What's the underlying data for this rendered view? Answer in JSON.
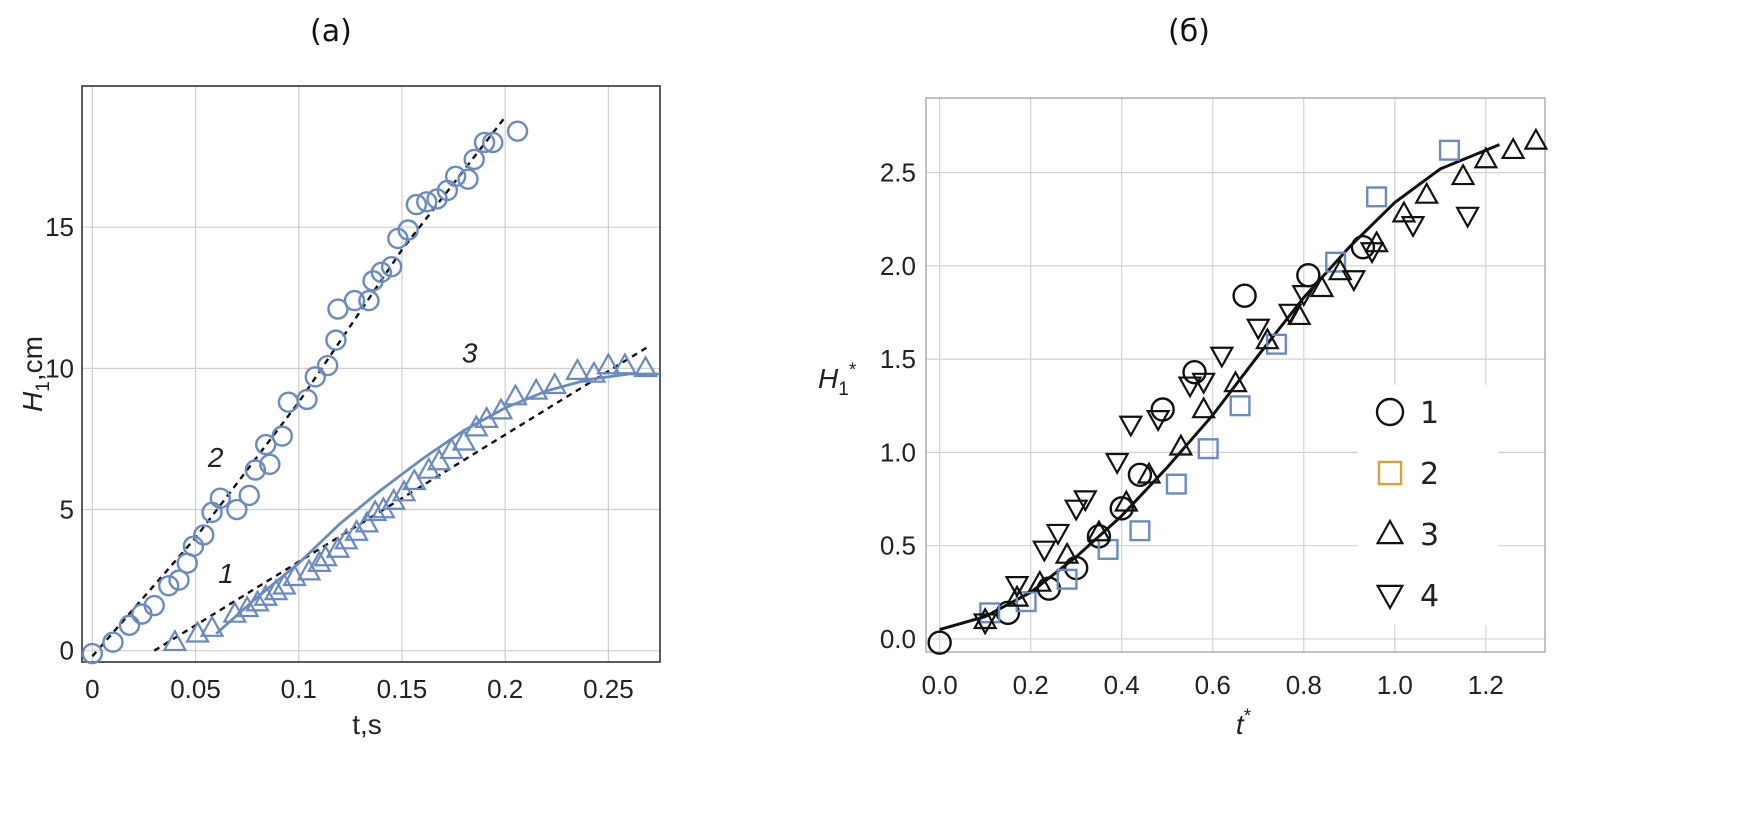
{
  "chart_data": [
    {
      "type": "scatter",
      "panel_label": "(а)",
      "xlabel": "t,s",
      "ylabel_main": "H",
      "ylabel_sub": "1",
      "ylabel_tail": ",cm",
      "xlim": [
        -0.005,
        0.275
      ],
      "ylim": [
        -0.4,
        20
      ],
      "xticks": [
        0,
        0.05,
        0.1,
        0.15,
        0.2,
        0.25
      ],
      "xtick_labels": [
        "0",
        "0.05",
        "0.1",
        "0.15",
        "0.2",
        "0.25"
      ],
      "yticks": [
        0,
        5,
        10,
        15
      ],
      "ytick_labels": [
        "0",
        "5",
        "10",
        "15"
      ],
      "grid": true,
      "colors": {
        "marker": "#6a8ac4",
        "dashed": "#111111",
        "fit": "#6a8ac4"
      },
      "series": [
        {
          "marker": "circle",
          "x": [
            0.0,
            0.01,
            0.018,
            0.024,
            0.03,
            0.037,
            0.042,
            0.046,
            0.049,
            0.054,
            0.058,
            0.062,
            0.07,
            0.076,
            0.079,
            0.084,
            0.086,
            0.092,
            0.095,
            0.104,
            0.108,
            0.114,
            0.118,
            0.119,
            0.127,
            0.134,
            0.136,
            0.14,
            0.145,
            0.148,
            0.153,
            0.157,
            0.162,
            0.167,
            0.172,
            0.176,
            0.182,
            0.185,
            0.19,
            0.194,
            0.206
          ],
          "y": [
            -0.1,
            0.3,
            0.9,
            1.3,
            1.6,
            2.3,
            2.5,
            3.1,
            3.7,
            4.1,
            4.9,
            5.4,
            5.0,
            5.5,
            6.4,
            7.3,
            6.6,
            7.6,
            8.8,
            8.9,
            9.7,
            10.1,
            11.0,
            12.1,
            12.4,
            12.4,
            13.1,
            13.4,
            13.6,
            14.6,
            14.9,
            15.8,
            15.9,
            16.0,
            16.3,
            16.8,
            16.7,
            17.4,
            18.0,
            18.0,
            18.4
          ]
        },
        {
          "marker": "triangle",
          "x": [
            0.04,
            0.051,
            0.058,
            0.069,
            0.075,
            0.08,
            0.084,
            0.089,
            0.093,
            0.098,
            0.105,
            0.11,
            0.113,
            0.119,
            0.123,
            0.128,
            0.133,
            0.137,
            0.141,
            0.146,
            0.151,
            0.156,
            0.163,
            0.168,
            0.174,
            0.18,
            0.186,
            0.191,
            0.198,
            0.205,
            0.215,
            0.224,
            0.235,
            0.243,
            0.25,
            0.258,
            0.268
          ],
          "y": [
            0.3,
            0.6,
            0.8,
            1.3,
            1.5,
            1.7,
            1.9,
            2.1,
            2.3,
            2.6,
            2.8,
            3.1,
            3.3,
            3.6,
            3.9,
            4.2,
            4.5,
            4.9,
            5.0,
            5.3,
            5.6,
            6.0,
            6.4,
            6.7,
            7.1,
            7.4,
            7.9,
            8.2,
            8.5,
            9.0,
            9.2,
            9.4,
            9.9,
            9.8,
            10.1,
            10.1,
            10.0
          ]
        }
      ],
      "curves": [
        {
          "label": "1",
          "style": "dashed",
          "x": [
            0.03,
            0.05,
            0.07,
            0.09,
            0.11,
            0.13,
            0.15,
            0.17,
            0.19,
            0.21,
            0.23,
            0.25,
            0.27
          ],
          "y": [
            0.0,
            0.9,
            1.8,
            2.7,
            3.6,
            4.5,
            5.4,
            6.3,
            7.2,
            8.1,
            9.0,
            9.9,
            10.8
          ]
        },
        {
          "label": "2",
          "style": "dashed",
          "x": [
            0.0,
            0.05,
            0.1,
            0.15,
            0.2
          ],
          "y": [
            -0.2,
            4.0,
            8.8,
            14.2,
            18.9
          ]
        },
        {
          "label": "3",
          "style": "solid",
          "x": [
            0.06,
            0.08,
            0.1,
            0.12,
            0.14,
            0.16,
            0.18,
            0.2,
            0.22,
            0.24,
            0.26,
            0.275
          ],
          "y": [
            0.6,
            1.9,
            3.1,
            4.5,
            5.7,
            6.8,
            7.8,
            8.6,
            9.2,
            9.6,
            9.8,
            9.8
          ]
        }
      ],
      "curve_labels": [
        {
          "text": "1",
          "x": 0.061,
          "y": 2.4
        },
        {
          "text": "2",
          "x": 0.056,
          "y": 6.5
        },
        {
          "text": "3",
          "x": 0.179,
          "y": 10.2
        }
      ]
    },
    {
      "type": "scatter",
      "panel_label": "(б)",
      "xlabel_main": "t",
      "xlabel_sup": "*",
      "ylabel_main": "H",
      "ylabel_sub": "1",
      "ylabel_sup": "*",
      "xlim": [
        -0.03,
        1.33
      ],
      "ylim": [
        -0.07,
        2.9
      ],
      "xticks": [
        0,
        0.2,
        0.4,
        0.6,
        0.8,
        1.0,
        1.2
      ],
      "xtick_labels": [
        "0.0",
        "0.2",
        "0.4",
        "0.6",
        "0.8",
        "1.0",
        "1.2"
      ],
      "yticks": [
        0,
        0.5,
        1.0,
        1.5,
        2.0,
        2.5
      ],
      "ytick_labels": [
        "0.0",
        "0.5",
        "1.0",
        "1.5",
        "2.0",
        "2.5"
      ],
      "grid": true,
      "legend_position": "right",
      "colors": {
        "black": "#111111",
        "blue": "#6a8ac4",
        "legend_square": "#e0a030"
      },
      "legend": [
        {
          "marker": "circle",
          "label": "1"
        },
        {
          "marker": "square",
          "label": "2"
        },
        {
          "marker": "triangle",
          "label": "3"
        },
        {
          "marker": "triangle-down",
          "label": "4"
        }
      ],
      "series": [
        {
          "name": "1",
          "marker": "circle",
          "x": [
            0.0,
            0.15,
            0.24,
            0.3,
            0.35,
            0.4,
            0.44,
            0.49,
            0.56,
            0.67,
            0.81,
            0.93
          ],
          "y": [
            -0.02,
            0.14,
            0.27,
            0.38,
            0.55,
            0.7,
            0.88,
            1.23,
            1.43,
            1.84,
            1.95,
            2.1
          ]
        },
        {
          "name": "2",
          "marker": "square",
          "x": [
            0.11,
            0.19,
            0.28,
            0.37,
            0.44,
            0.52,
            0.59,
            0.66,
            0.74,
            0.87,
            0.96,
            1.12
          ],
          "y": [
            0.14,
            0.2,
            0.32,
            0.48,
            0.58,
            0.83,
            1.02,
            1.25,
            1.58,
            2.02,
            2.37,
            2.62
          ]
        },
        {
          "name": "3",
          "marker": "triangle",
          "x": [
            0.1,
            0.17,
            0.22,
            0.28,
            0.35,
            0.41,
            0.46,
            0.53,
            0.58,
            0.65,
            0.72,
            0.79,
            0.84,
            0.88,
            0.96,
            1.02,
            1.07,
            1.15,
            1.2,
            1.26,
            1.31
          ],
          "y": [
            0.1,
            0.22,
            0.3,
            0.45,
            0.57,
            0.73,
            0.88,
            1.03,
            1.23,
            1.37,
            1.6,
            1.73,
            1.88,
            1.97,
            2.12,
            2.28,
            2.38,
            2.48,
            2.57,
            2.62,
            2.67
          ]
        },
        {
          "name": "4",
          "marker": "triangle-down",
          "x": [
            0.1,
            0.17,
            0.23,
            0.26,
            0.3,
            0.32,
            0.39,
            0.42,
            0.48,
            0.55,
            0.58,
            0.62,
            0.7,
            0.77,
            0.8,
            0.91,
            0.95,
            1.04,
            1.16
          ],
          "y": [
            0.09,
            0.29,
            0.48,
            0.57,
            0.7,
            0.75,
            0.95,
            1.15,
            1.18,
            1.36,
            1.38,
            1.52,
            1.67,
            1.75,
            1.85,
            1.93,
            2.08,
            2.22,
            2.27
          ]
        }
      ],
      "curves": [
        {
          "style": "solid",
          "x": [
            0.0,
            0.1,
            0.2,
            0.3,
            0.4,
            0.5,
            0.6,
            0.7,
            0.8,
            0.9,
            1.0,
            1.1,
            1.23
          ],
          "y": [
            0.05,
            0.12,
            0.25,
            0.44,
            0.66,
            0.92,
            1.2,
            1.52,
            1.83,
            2.1,
            2.34,
            2.52,
            2.65
          ]
        }
      ]
    }
  ]
}
